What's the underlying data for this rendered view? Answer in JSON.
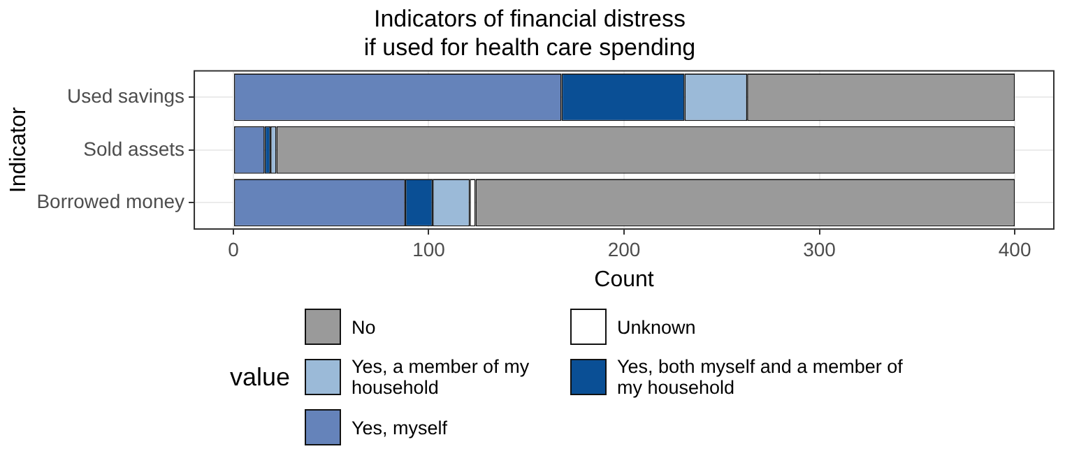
{
  "chart_data": {
    "type": "bar",
    "orientation": "horizontal",
    "stacked": true,
    "title": "Indicators of financial distress\nif used for health care spending",
    "xlabel": "Count",
    "ylabel": "Indicator",
    "legend_title": "value",
    "legend": "bottom",
    "grid": true,
    "categories": [
      "Used savings",
      "Sold assets",
      "Borrowed money"
    ],
    "series": [
      {
        "name": "Yes, myself",
        "color": "#6583ba",
        "values": [
          168,
          16,
          88
        ]
      },
      {
        "name": "Yes, both myself and a member of my household",
        "color": "#0a4f95",
        "values": [
          63,
          3,
          14
        ]
      },
      {
        "name": "Yes, a member of my household",
        "color": "#9bbad8",
        "values": [
          32,
          3,
          19
        ]
      },
      {
        "name": "Unknown",
        "color": "#ffffff",
        "values": [
          0,
          0,
          3
        ]
      },
      {
        "name": "No",
        "color": "#9a9a9a",
        "values": [
          137,
          378,
          276
        ]
      }
    ],
    "xlim": [
      -20,
      420
    ],
    "xticks": [
      0,
      100,
      200,
      300,
      400
    ]
  }
}
